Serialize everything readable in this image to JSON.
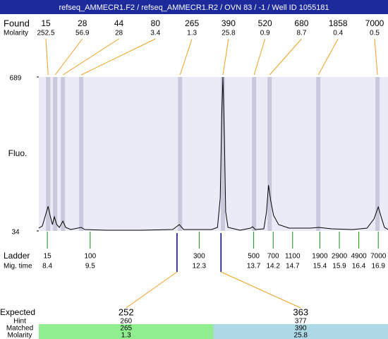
{
  "chart_data": {
    "type": "line",
    "title": "refseq_AMMECR1.F2 / refseq_AMMECR1.R2 / OVN 83 / -1 / Well ID 1055181",
    "y_label": "Fluo.",
    "xlim": [
      8.18,
      17.15
    ],
    "ylim": [
      34,
      689
    ],
    "yticks": [
      34,
      689
    ],
    "color": "#000000",
    "area_color": "#ebebf8",
    "x": [
      8.18,
      8.27,
      8.35,
      8.42,
      8.47,
      8.53,
      8.58,
      8.64,
      8.71,
      8.8,
      8.87,
      9.0,
      9.27,
      9.36,
      9.9,
      10.81,
      11.62,
      11.79,
      11.9,
      12.62,
      12.77,
      12.84,
      12.88,
      12.91,
      12.95,
      12.98,
      13.04,
      13.35,
      13.62,
      13.67,
      13.74,
      13.96,
      14.03,
      14.08,
      14.14,
      14.21,
      14.34,
      14.61,
      15.16,
      15.37,
      15.7,
      16.24,
      16.61,
      16.79,
      16.9,
      16.99,
      17.06,
      17.15
    ],
    "values": [
      46,
      55,
      100,
      139,
      100,
      61,
      94,
      61,
      49,
      76,
      49,
      40,
      49,
      40,
      37,
      37,
      40,
      61,
      40,
      40,
      49,
      175,
      535,
      689,
      415,
      115,
      49,
      37,
      46,
      52,
      40,
      43,
      115,
      229,
      160,
      100,
      61,
      46,
      46,
      49,
      43,
      40,
      46,
      85,
      136,
      85,
      49,
      40
    ],
    "found": {
      "label": "Found",
      "molarity_label": "Molarity",
      "sizes": [
        15,
        28,
        44,
        80,
        265,
        390,
        520,
        680,
        1858,
        7000
      ],
      "molarity": [
        252.5,
        56.9,
        28,
        3.4,
        1.3,
        25.8,
        0.9,
        8.7,
        0.4,
        0.5
      ],
      "x": [
        8.42,
        8.6,
        8.8,
        9.27,
        11.81,
        12.91,
        13.71,
        14.11,
        15.36,
        16.88
      ],
      "color": "#f0a020"
    },
    "ladder": {
      "label": "Ladder",
      "time_label": "Mig. time",
      "sizes": [
        15,
        100,
        300,
        500,
        700,
        1100,
        1900,
        2900,
        4900,
        7000
      ],
      "x": [
        8.4,
        9.5,
        12.3,
        13.7,
        14.2,
        14.7,
        15.4,
        15.9,
        16.4,
        16.9
      ],
      "color": "#1a8a1a"
    },
    "expected": {
      "label": "Expected",
      "hint_label": "Hint",
      "matched_label": "Matched",
      "molarity_label": "Molarity",
      "values": [
        252,
        363
      ],
      "hint": [
        260,
        377
      ],
      "matched": [
        265,
        390
      ],
      "molarity": [
        1.3,
        25.8
      ],
      "x": [
        11.73,
        12.86
      ],
      "colors": [
        "#90ee90",
        "#add8e6"
      ]
    }
  }
}
